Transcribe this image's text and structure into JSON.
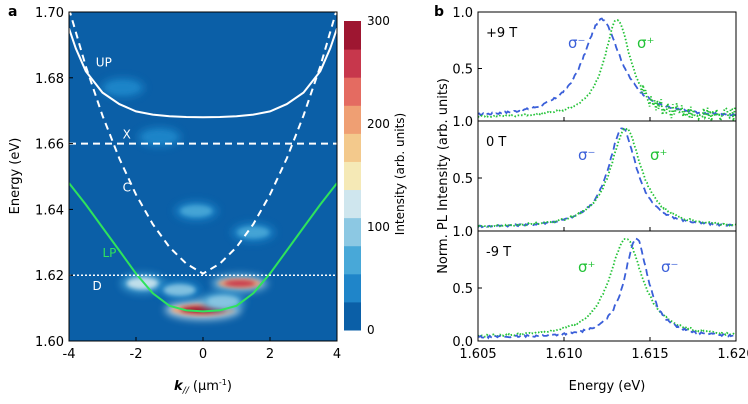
{
  "panel_a": {
    "label": "a",
    "xlabel_main": "k",
    "xlabel_sub": "//",
    "xlabel_unit": " (μm",
    "xlabel_exp": "-1",
    "xlabel_close": ")",
    "ylabel": "Energy (eV)",
    "colorbar_label": "Intensity (arb. units)",
    "colorbar_ticks": [
      "300",
      "200",
      "100",
      "0"
    ],
    "colorbar_colors": [
      "#0b5fa7",
      "#1f85c9",
      "#48a8d8",
      "#8cc8e3",
      "#cfe6ee",
      "#f5e9b6",
      "#f3c98c",
      "#ef9f73",
      "#e46b61",
      "#c7374c",
      "#9e1631"
    ],
    "background_color": "#0b5fa7",
    "branch_labels": [
      "UP",
      "X",
      "C",
      "LP",
      "D"
    ]
  },
  "chart_data": [
    {
      "type": "heatmap",
      "title": "",
      "xlabel": "k// (μm-1)",
      "ylabel": "Energy (eV)",
      "xlim": [
        -4,
        4
      ],
      "ylim": [
        1.6,
        1.7
      ],
      "x_ticks": [
        "-4",
        "-2",
        "0",
        "2",
        "4"
      ],
      "y_ticks": [
        "1.60",
        "1.62",
        "1.64",
        "1.66",
        "1.68",
        "1.70"
      ],
      "colorbar_range": [
        0,
        300
      ],
      "curves": [
        {
          "name": "UP",
          "color": "#ffffff",
          "style": "solid",
          "x": [
            -4,
            -3.8,
            -3.5,
            -3.0,
            -2.5,
            -2.0,
            -1.5,
            -1.0,
            -0.5,
            0,
            0.5,
            1.0,
            1.5,
            2.0,
            2.5,
            3.0,
            3.5,
            3.8,
            4
          ],
          "y": [
            1.695,
            1.689,
            1.682,
            1.6755,
            1.672,
            1.6698,
            1.6688,
            1.6683,
            1.6681,
            1.668,
            1.6681,
            1.6683,
            1.6688,
            1.6698,
            1.672,
            1.6755,
            1.682,
            1.689,
            1.695
          ]
        },
        {
          "name": "X",
          "color": "#ffffff",
          "style": "dashed",
          "x": [
            -4,
            4
          ],
          "y": [
            1.66,
            1.66
          ]
        },
        {
          "name": "C",
          "color": "#ffffff",
          "style": "dashed",
          "x": [
            -4,
            -3.5,
            -3.0,
            -2.5,
            -2.0,
            -1.5,
            -1.0,
            -0.5,
            0,
            0.5,
            1.0,
            1.5,
            2.0,
            2.5,
            3.0,
            3.5,
            4
          ],
          "y": [
            1.701,
            1.6835,
            1.6685,
            1.6555,
            1.6445,
            1.6355,
            1.6285,
            1.6235,
            1.6205,
            1.6235,
            1.6285,
            1.6355,
            1.6445,
            1.6555,
            1.6685,
            1.6835,
            1.701
          ]
        },
        {
          "name": "LP",
          "color": "#2ee35c",
          "style": "solid",
          "x": [
            -4,
            -3.5,
            -3.0,
            -2.5,
            -2.0,
            -1.5,
            -1.0,
            -0.5,
            0,
            0.5,
            1.0,
            1.5,
            2.0,
            2.5,
            3.0,
            3.5,
            4
          ],
          "y": [
            1.648,
            1.6415,
            1.6345,
            1.6275,
            1.6205,
            1.6145,
            1.6107,
            1.6093,
            1.609,
            1.6093,
            1.6107,
            1.6145,
            1.6205,
            1.6275,
            1.6345,
            1.6415,
            1.648
          ]
        },
        {
          "name": "D",
          "color": "#ffffff",
          "style": "dotted",
          "x": [
            -4,
            4
          ],
          "y": [
            1.62,
            1.62
          ]
        }
      ],
      "hotspots": [
        {
          "k": 0.0,
          "E": 1.6095,
          "level": 300
        },
        {
          "k": 1.1,
          "E": 1.6175,
          "level": 280
        },
        {
          "k": -1.8,
          "E": 1.6175,
          "level": 160
        },
        {
          "k": -0.7,
          "E": 1.6155,
          "level": 120
        },
        {
          "k": 0.6,
          "E": 1.612,
          "level": 140
        },
        {
          "k": -0.2,
          "E": 1.6395,
          "level": 70
        },
        {
          "k": 1.5,
          "E": 1.633,
          "level": 80
        },
        {
          "k": -1.3,
          "E": 1.662,
          "level": 60
        },
        {
          "k": -2.4,
          "E": 1.677,
          "level": 50
        }
      ]
    },
    {
      "type": "line",
      "title": "",
      "xlabel": "Energy (eV)",
      "ylabel": "Norm. PL Intensity (arb. units)",
      "xlim": [
        1.605,
        1.62
      ],
      "x_ticks": [
        "1.605",
        "1.610",
        "1.615",
        "1.620"
      ],
      "subplots": [
        {
          "label": "+9 T",
          "ylim": [
            0,
            1
          ],
          "y_ticks": [
            "1.0",
            "0.5"
          ],
          "series": [
            {
              "name": "σ⁻",
              "color": "#3a5fd9",
              "style": "dashed",
              "center": 1.6122,
              "width": 0.0016
            },
            {
              "name": "σ⁺",
              "color": "#22c236",
              "style": "dotted",
              "center": 1.6131,
              "width": 0.0011
            }
          ]
        },
        {
          "label": "0 T",
          "ylim": [
            0,
            1
          ],
          "y_ticks": [
            "1.0",
            "0.5"
          ],
          "series": [
            {
              "name": "σ⁻",
              "color": "#3a5fd9",
              "style": "dashed",
              "center": 1.6134,
              "width": 0.0012
            },
            {
              "name": "σ⁺",
              "color": "#22c236",
              "style": "dotted",
              "center": 1.6136,
              "width": 0.0013
            }
          ]
        },
        {
          "label": "-9 T",
          "ylim": [
            0,
            1
          ],
          "y_ticks": [
            "1.0",
            "0.5",
            "0.0"
          ],
          "series": [
            {
              "name": "σ⁺",
              "color": "#22c236",
              "style": "dotted",
              "center": 1.6136,
              "width": 0.0014
            },
            {
              "name": "σ⁻",
              "color": "#3a5fd9",
              "style": "dashed",
              "center": 1.6142,
              "width": 0.001
            }
          ]
        }
      ]
    }
  ],
  "panel_b": {
    "label": "b",
    "xlabel": "Energy (eV)",
    "ylabel": "Norm. PL Intensity (arb. units)"
  }
}
